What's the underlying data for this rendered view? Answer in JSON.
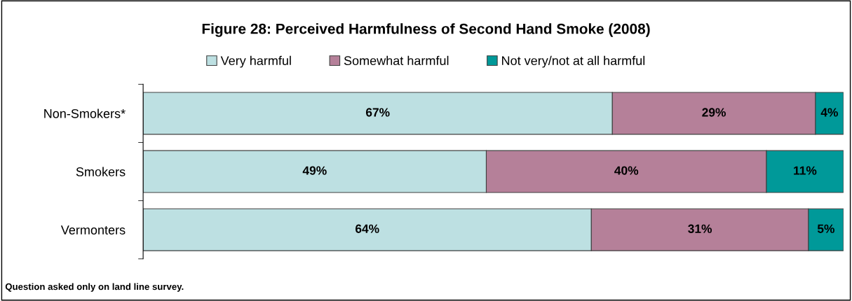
{
  "chart_data": {
    "type": "bar",
    "orientation": "horizontal",
    "stacked": true,
    "title": "Figure 28: Perceived Harmfulness of Second Hand Smoke (2008)",
    "categories": [
      "Non-Smokers*",
      "Smokers",
      "Vermonters"
    ],
    "series": [
      {
        "name": "Very harmful",
        "color": "#bde0e2",
        "values": [
          67,
          49,
          64
        ],
        "value_labels": [
          "67%",
          "49%",
          "64%"
        ]
      },
      {
        "name": "Somewhat harmful",
        "color": "#b58099",
        "values": [
          29,
          40,
          31
        ],
        "value_labels": [
          "29%",
          "40%",
          "31%"
        ]
      },
      {
        "name": "Not very/not at all harmful",
        "color": "#009999",
        "values": [
          4,
          11,
          5
        ],
        "value_labels": [
          "4%",
          "11%",
          "5%"
        ]
      }
    ],
    "legend": "top",
    "tick_labels": "y",
    "annotations": [
      "Question asked only on land line survey."
    ]
  }
}
